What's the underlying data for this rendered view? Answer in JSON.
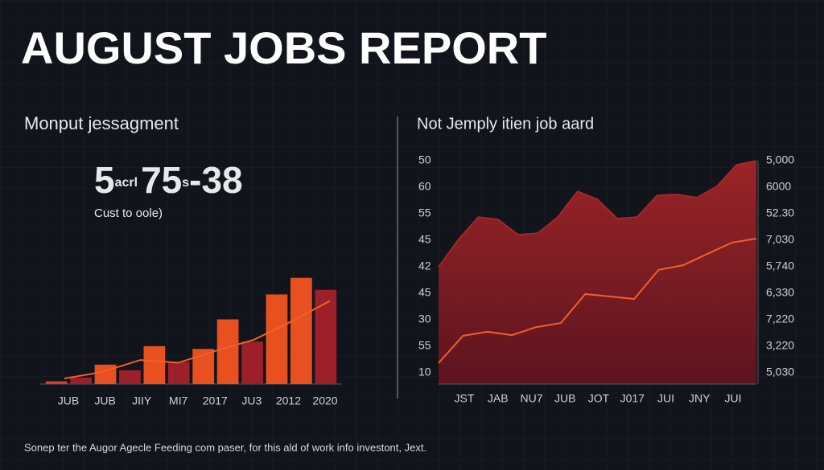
{
  "header": {
    "title": "AUGUST JOBS REPORT"
  },
  "footer": {
    "text": "Sonep ter the Augor Agecle Feeding com paser, for this ald of work info investont, Jext."
  },
  "left_panel": {
    "subtitle": "Monput jessagment",
    "figure": [
      "5",
      "acrl",
      "75",
      "s",
      "-38"
    ],
    "caption": "Cust to oole)",
    "chart_data": {
      "type": "bar",
      "values": [
        3,
        7,
        21,
        15,
        41,
        24,
        38,
        70,
        46,
        97,
        115,
        102
      ],
      "colors": [
        "#d8401f",
        "#9c1f2a",
        "#e8501f",
        "#9c1f2a",
        "#e8501f",
        "#9c1f2a",
        "#e8501f",
        "#e8501f",
        "#9c1f2a",
        "#e8501f",
        "#e8501f",
        "#9c1f2a"
      ],
      "ylim": [
        0,
        120
      ],
      "x_labels": [
        "JUB",
        "JUB",
        "JIIY",
        "MI7",
        "2017",
        "JU3",
        "2012",
        "2020"
      ],
      "trend": {
        "color": "#f0602a",
        "values": [
          6,
          13,
          26,
          23,
          36,
          48,
          68,
          90
        ]
      }
    }
  },
  "right_panel": {
    "chart_data": {
      "type": "area",
      "title": "Not Jemply itien job aard",
      "x_labels": [
        "JST",
        "JAB",
        "NU7",
        "JUB",
        "JOT",
        "J017",
        "JUI",
        "JNY",
        "JUI"
      ],
      "ylabels": [
        "50",
        "60",
        "55",
        "45",
        "42",
        "45",
        "30",
        "55",
        "10"
      ],
      "y2labels": [
        "5,000",
        "6000",
        "52.30",
        "7,030",
        "5,740",
        "6,330",
        "7,220",
        "3,220",
        "5,030"
      ],
      "ylim": [
        0,
        100
      ],
      "area": {
        "color": "#8c1e22",
        "values": [
          52.5,
          64.7,
          74.8,
          73.7,
          66.9,
          67.6,
          74.8,
          86.3,
          82.7,
          74.1,
          74.8,
          84.5,
          84.9,
          83.5,
          88.5,
          98.2,
          100
        ]
      },
      "line": {
        "color": "#f0602a",
        "values": [
          9.4,
          21.6,
          23.4,
          21.9,
          25.5,
          27.3,
          40.3,
          39.2,
          38.1,
          51.1,
          53.2,
          58.3,
          63.3,
          65.1
        ]
      }
    }
  }
}
